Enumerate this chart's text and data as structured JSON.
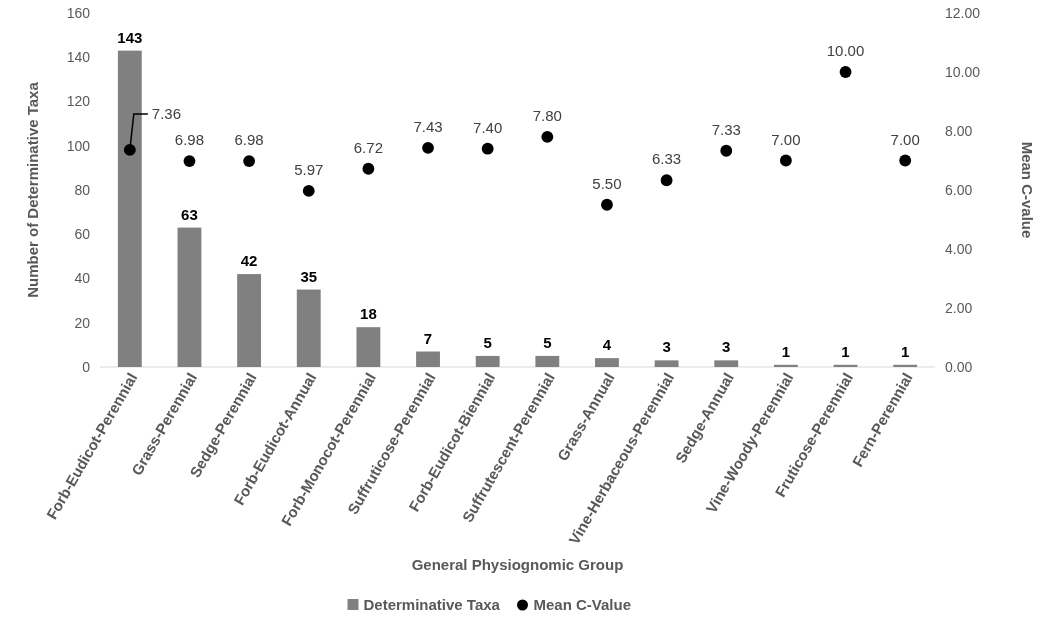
{
  "chart_data": {
    "type": "bar",
    "xlabel": "General Physiognomic Group",
    "ylabel": "Number of Determinative Taxa",
    "y2label": "Mean C-value",
    "categories": [
      "Forb-Eudicot-Perennial",
      "Grass-Perennial",
      "Sedge-Perennial",
      "Forb-Eudicot-Annual",
      "Forb-Monocot-Perennial",
      "Suffruticose-Perennial",
      "Forb-Eudicot-Biennial",
      "Suffrutescent-Perennial",
      "Grass-Annual",
      "Vine-Herbaceous-Perennial",
      "Sedge-Annual",
      "Vine-Woody-Perennial",
      "Fruticose-Perennial",
      "Fern-Perennial"
    ],
    "series": [
      {
        "name": "Determinative Taxa",
        "color": "#808080",
        "values": [
          143,
          63,
          42,
          35,
          18,
          7,
          5,
          5,
          4,
          3,
          3,
          1,
          1,
          1
        ],
        "value_labels": [
          "143",
          "63",
          "42",
          "35",
          "18",
          "7",
          "5",
          "5",
          "4",
          "3",
          "3",
          "1",
          "1",
          "1"
        ]
      },
      {
        "name": "Mean C-Value",
        "type": "scatter",
        "axis": "y2",
        "color": "#000000",
        "values": [
          7.36,
          6.98,
          6.98,
          5.97,
          6.72,
          7.43,
          7.4,
          7.8,
          5.5,
          6.33,
          7.33,
          7.0,
          10.0,
          7.0
        ],
        "value_labels": [
          "7.36",
          "6.98",
          "6.98",
          "5.97",
          "6.72",
          "7.43",
          "7.40",
          "7.80",
          "5.50",
          "6.33",
          "7.33",
          "7.00",
          "10.00",
          "7.00"
        ]
      }
    ],
    "ylim": [
      0,
      160
    ],
    "yticks": [
      0,
      20,
      40,
      60,
      80,
      100,
      120,
      140,
      160
    ],
    "y2lim": [
      0,
      12
    ],
    "y2ticks": [
      {
        "value": 0,
        "label": "0.00"
      },
      {
        "value": 2,
        "label": "2.00"
      },
      {
        "value": 4,
        "label": "4.00"
      },
      {
        "value": 6,
        "label": "6.00"
      },
      {
        "value": 8,
        "label": "8.00"
      },
      {
        "value": 10,
        "label": "10.00"
      },
      {
        "value": 12,
        "label": "12.00"
      }
    ],
    "marker": "circle",
    "legend": "bottom",
    "grid": false
  }
}
